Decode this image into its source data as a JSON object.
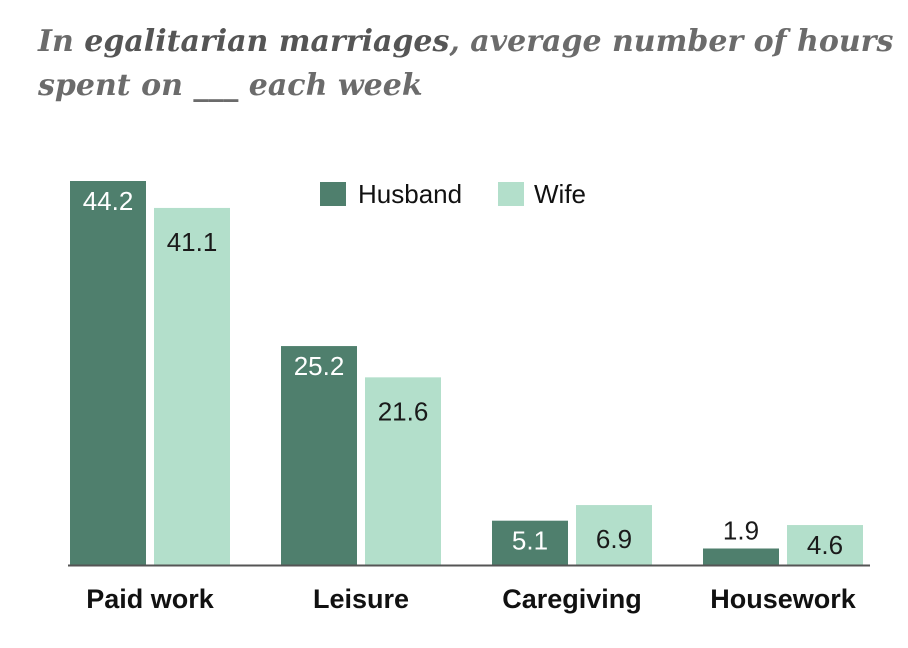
{
  "title": {
    "prefix": "In ",
    "emphasis": "egalitarian marriages",
    "suffix": ", average number of hours",
    "line2": "spent on ___ each week"
  },
  "colors": {
    "husband": "#4f7f6d",
    "wife": "#b3dfcb",
    "axis": "#555555"
  },
  "chart_data": {
    "type": "bar",
    "categories": [
      "Paid work",
      "Leisure",
      "Caregiving",
      "Housework"
    ],
    "series": [
      {
        "name": "Husband",
        "values": [
          44.2,
          25.2,
          5.1,
          1.9
        ]
      },
      {
        "name": "Wife",
        "values": [
          41.1,
          21.6,
          6.9,
          4.6
        ]
      }
    ],
    "value_labels": [
      [
        "44.2",
        "25.2",
        "5.1",
        "1.9"
      ],
      [
        "41.1",
        "21.6",
        "6.9",
        "4.6"
      ]
    ],
    "ylim": [
      0,
      44.2
    ],
    "grid": false,
    "legend_position": "top-center"
  }
}
